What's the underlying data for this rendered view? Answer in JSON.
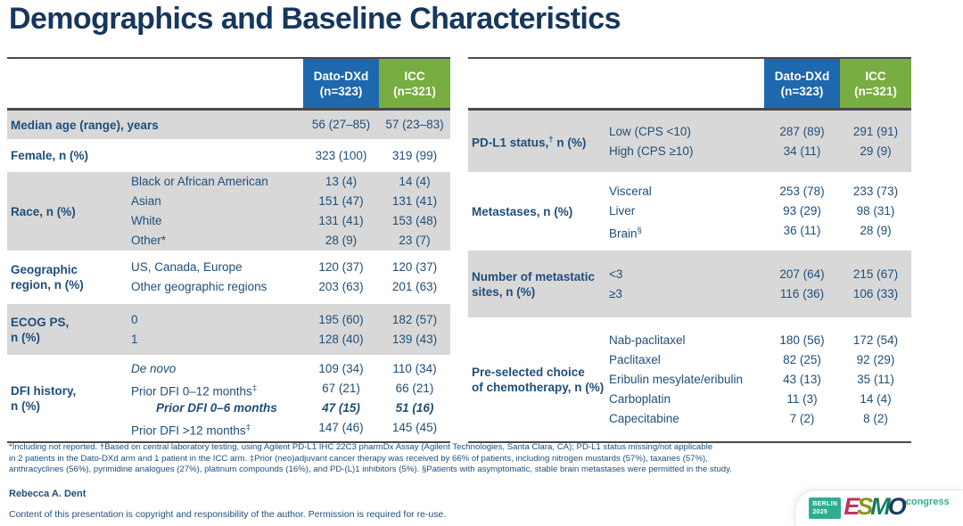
{
  "title": "Demographics and Baseline Characteristics",
  "arms": {
    "arm1_name": "Dato-DXd",
    "arm1_n": "(n=323)",
    "arm2_name": "ICC",
    "arm2_n": "(n=321)"
  },
  "colors": {
    "arm1_blue": "#1e68ae",
    "arm2_green": "#77ad41",
    "row_shade_gray": "#d8d8d8",
    "text_navy": "#1f4e79",
    "title_navy": "#17375d",
    "logo_teal": "#2fae92",
    "esmo_e": "#bf3460",
    "esmo_s": "#8e9422",
    "esmo_m": "#0f7d5c",
    "esmo_o": "#1e3a68"
  },
  "left": {
    "groups": [
      {
        "label": "Median age (range), years",
        "rows": [
          {
            "v1": "56 (27–85)",
            "v2": "57 (23–83)"
          }
        ]
      },
      {
        "label": "Female, n (%)",
        "rows": [
          {
            "v1": "323 (100)",
            "v2": "319 (99)"
          }
        ]
      },
      {
        "label": "Race, n (%)",
        "rows": [
          {
            "sub": "Black or African American",
            "v1": "13 (4)",
            "v2": "14 (4)"
          },
          {
            "sub": "Asian",
            "v1": "151 (47)",
            "v2": "131 (41)"
          },
          {
            "sub": "White",
            "v1": "131 (41)",
            "v2": "153 (48)"
          },
          {
            "sub": "Other*",
            "v1": "28 (9)",
            "v2": "23 (7)"
          }
        ]
      },
      {
        "label": "Geographic\nregion, n (%)",
        "rows": [
          {
            "sub": "US, Canada, Europe",
            "v1": "120 (37)",
            "v2": "120 (37)"
          },
          {
            "sub": "Other geographic regions",
            "v1": "203 (63)",
            "v2": "201 (63)"
          }
        ]
      },
      {
        "label": "ECOG PS,\nn (%)",
        "rows": [
          {
            "sub": "0",
            "v1": "195 (60)",
            "v2": "182 (57)"
          },
          {
            "sub": "1",
            "v1": "128 (40)",
            "v2": "139 (43)"
          }
        ]
      },
      {
        "label": "DFI history,\nn (%)",
        "rows": [
          {
            "sub": "De novo",
            "v1": "109 (34)",
            "v2": "110 (34)"
          },
          {
            "sub": "Prior DFI 0–12 months",
            "sup": "‡",
            "v1": "67 (21)",
            "v2": "66 (21)"
          },
          {
            "sub": "Prior DFI 0–6 months",
            "v1": "47 (15)",
            "v2": "51 (16)"
          },
          {
            "sub": "Prior DFI >12 months",
            "sup": "‡",
            "v1": "147 (46)",
            "v2": "145 (45)"
          }
        ]
      }
    ]
  },
  "right": {
    "groups": [
      {
        "label_pre": "PD-L1 status,",
        "label_sup": "†",
        "label_post": " n (%)",
        "rows": [
          {
            "sub": "Low (CPS <10)",
            "v1": "287 (89)",
            "v2": "291 (91)"
          },
          {
            "sub": "High (CPS ≥10)",
            "v1": "34 (11)",
            "v2": "29 (9)"
          }
        ]
      },
      {
        "label": "Metastases, n (%)",
        "rows": [
          {
            "sub": "Visceral",
            "v1": "253 (78)",
            "v2": "233 (73)"
          },
          {
            "sub": "Liver",
            "v1": "93 (29)",
            "v2": "98 (31)"
          },
          {
            "sub": "Brain",
            "sup": "§",
            "v1": "36 (11)",
            "v2": "28 (9)"
          }
        ]
      },
      {
        "label": "Number of metastatic\nsites, n (%)",
        "rows": [
          {
            "sub": "<3",
            "v1": "207 (64)",
            "v2": "215 (67)"
          },
          {
            "sub": "≥3",
            "v1": "116 (36)",
            "v2": "106 (33)"
          }
        ]
      },
      {
        "label": "Pre-selected choice\nof chemotherapy, n (%)",
        "rows": [
          {
            "sub": "Nab-paclitaxel",
            "v1": "180 (56)",
            "v2": "172 (54)"
          },
          {
            "sub": "Paclitaxel",
            "v1": "82 (25)",
            "v2": "92 (29)"
          },
          {
            "sub": "Eribulin mesylate/eribulin",
            "v1": "43 (13)",
            "v2": "35 (11)"
          },
          {
            "sub": "Carboplatin",
            "v1": "11 (3)",
            "v2": "14 (4)"
          },
          {
            "sub": "Capecitabine",
            "v1": "7 (2)",
            "v2": "8 (2)"
          }
        ]
      }
    ]
  },
  "footnotes": {
    "line1": "*Including not reported. †Based on central laboratory testing, using Agilent PD-L1 IHC 22C3 pharmDx Assay (Agilent Technologies, Santa Clara, CA); PD-L1 status missing/not applicable",
    "line2": "in 2 patients in the Dato-DXd arm and 1 patient in the ICC arm. ‡Prior (neo)adjuvant cancer therapy was received by 66% of patients, including nitrogen mustards (57%), taxanes (57%),",
    "line3": "anthracyclines (56%), pyrimidine analogues (27%), platinum compounds (16%), and PD-(L)1 inhibitors (5%). §Patients with asymptomatic, stable brain metastases were permitted in the study."
  },
  "author": "Rebecca A. Dent",
  "copyright": "Content of this presentation is copyright and responsibility of the author. Permission is required for re-use.",
  "logo": {
    "badge_line1": "BERLIN",
    "badge_line2": "2025",
    "letter_e": "E",
    "letter_s": "S",
    "letter_m": "M",
    "letter_o": "O",
    "congress": "congress"
  }
}
